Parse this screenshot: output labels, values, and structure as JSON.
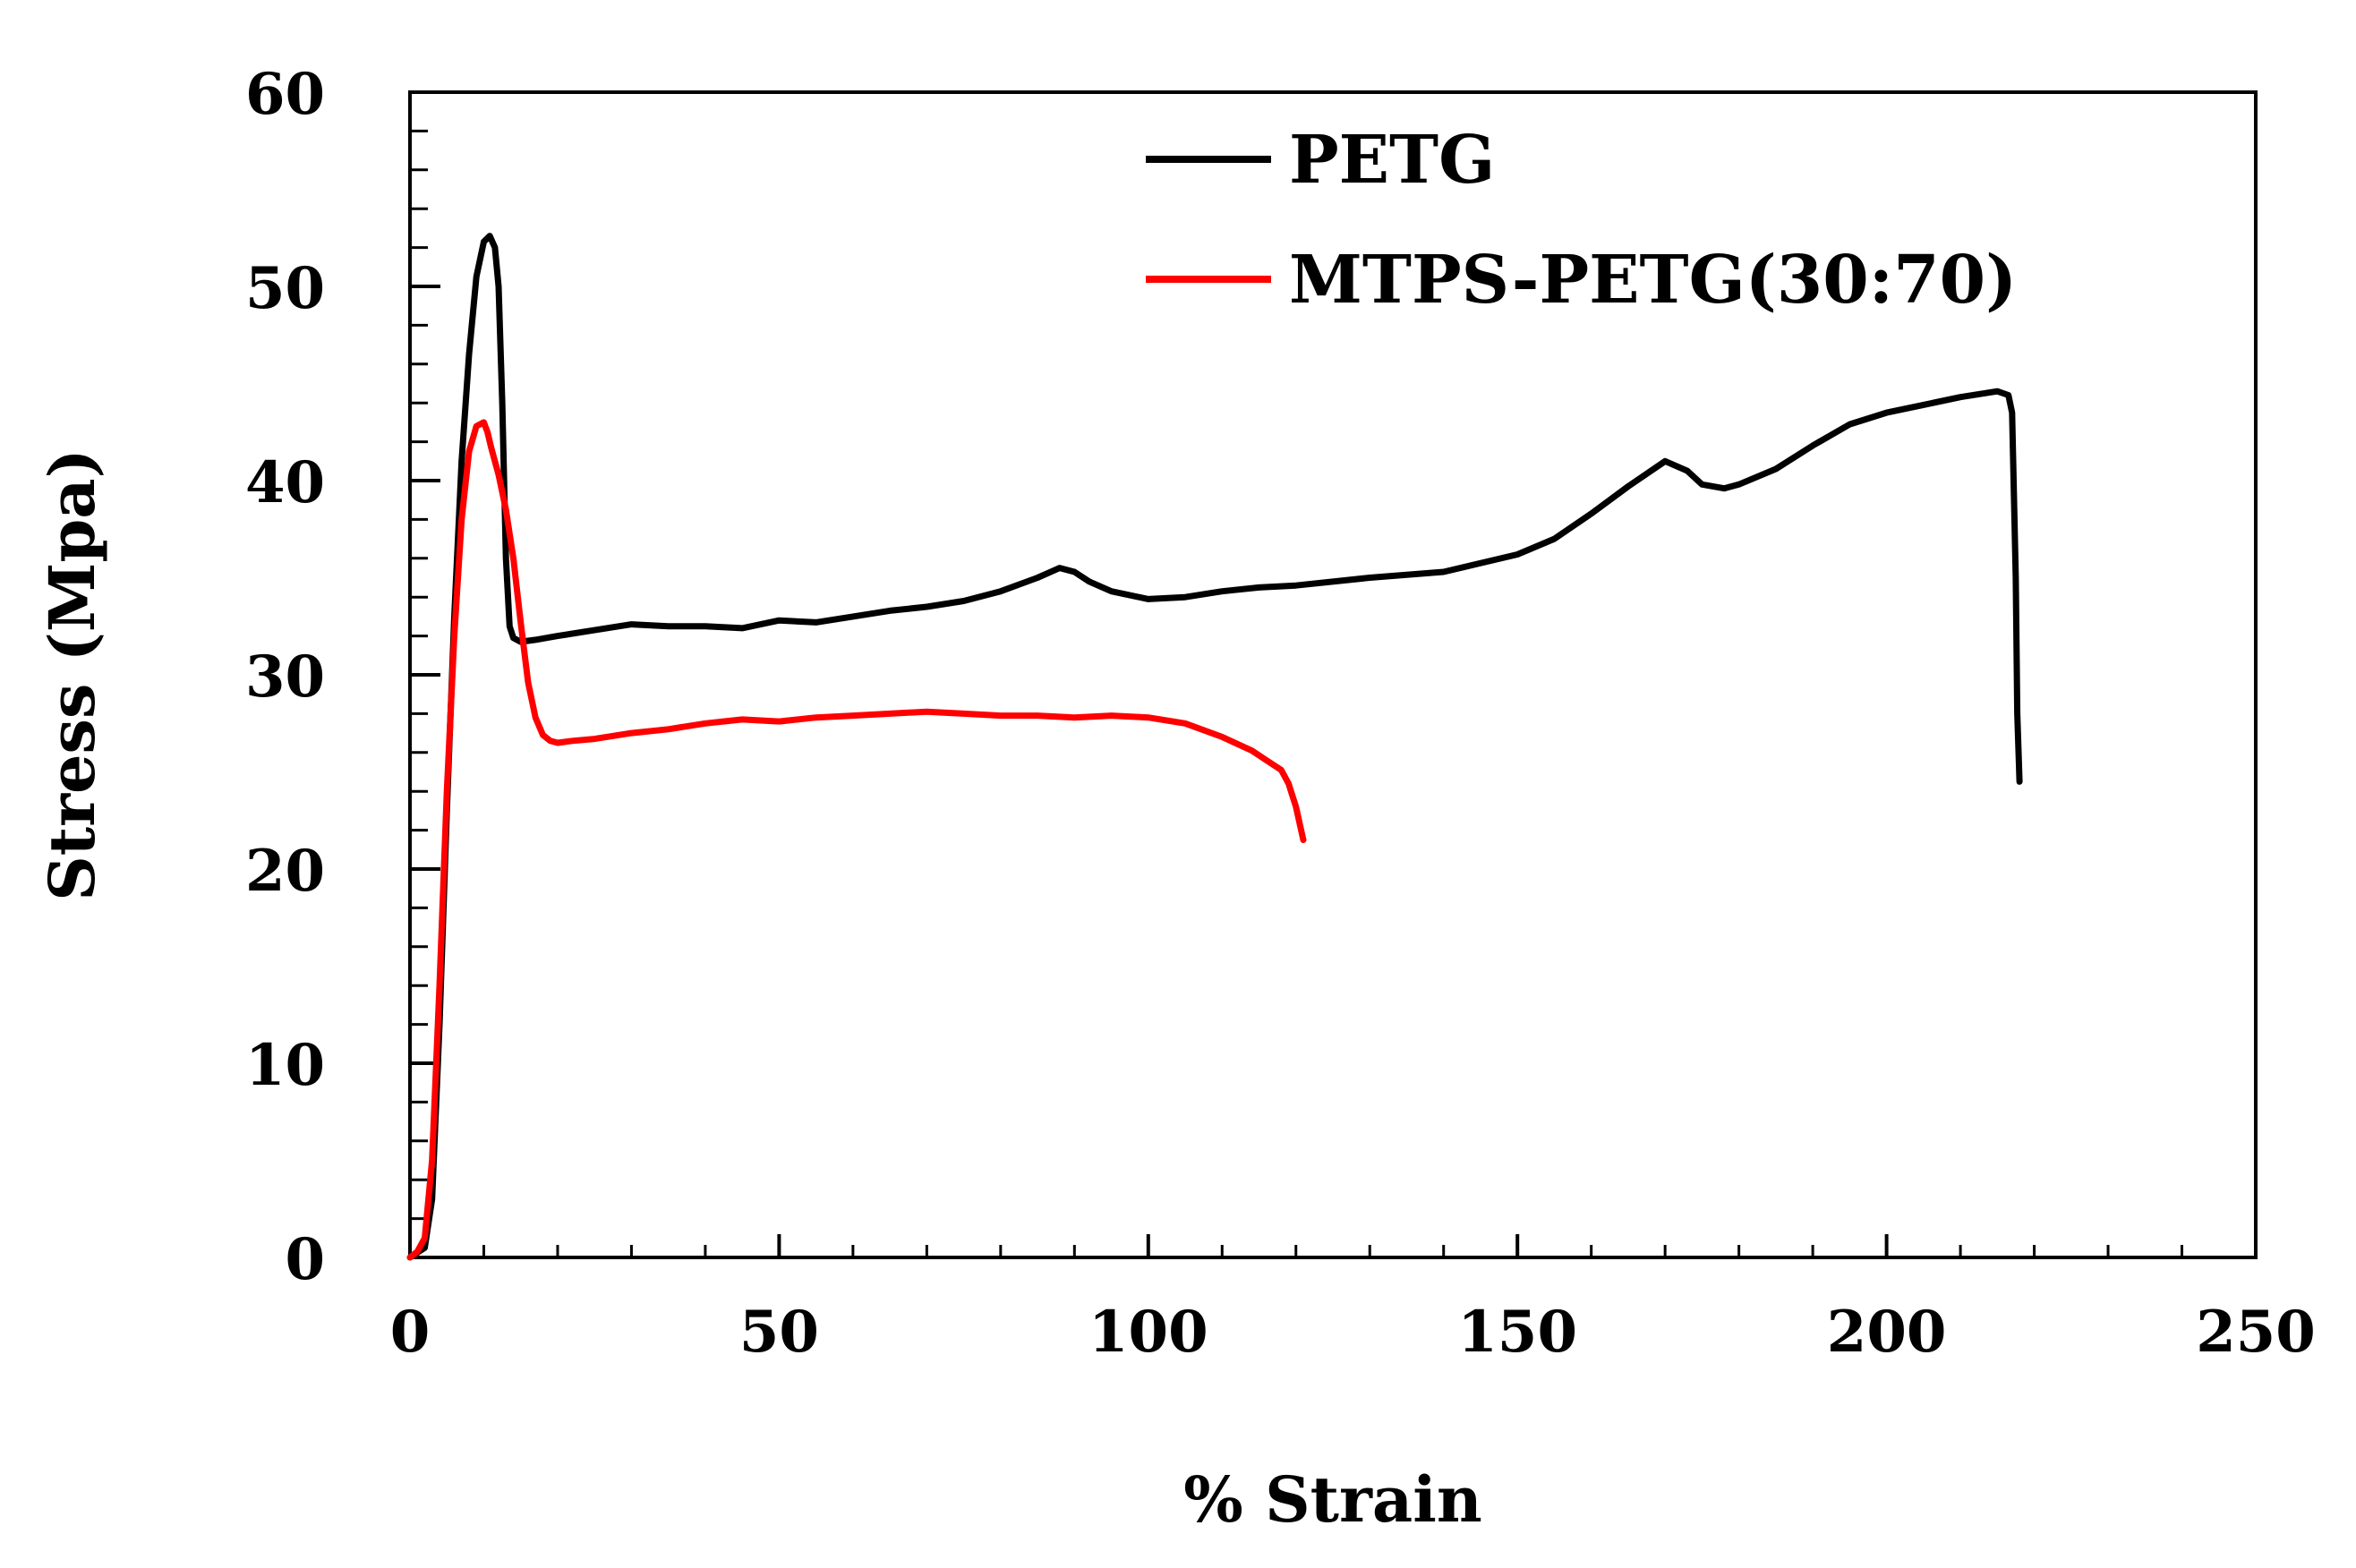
{
  "chart_data": {
    "type": "line",
    "title": "",
    "xlabel": "% Strain",
    "ylabel": "Stress (Mpa)",
    "xlim": [
      0,
      250
    ],
    "ylim": [
      0,
      60
    ],
    "x_ticks": [
      0,
      50,
      100,
      150,
      200,
      250
    ],
    "y_ticks": [
      0,
      10,
      20,
      30,
      40,
      50,
      60
    ],
    "x_tick_labels": [
      "0",
      "50",
      "100",
      "150",
      "200",
      "250"
    ],
    "y_tick_labels": [
      "0",
      "10",
      "20",
      "30",
      "40",
      "50",
      "60"
    ],
    "grid": false,
    "legend_position": "top-right",
    "series": [
      {
        "name": "PETG",
        "color": "#000000",
        "x": [
          0,
          2,
          3,
          4,
          5,
          6,
          7,
          8,
          9,
          10,
          10.8,
          11.5,
          12,
          12.5,
          13,
          13.5,
          14,
          15,
          17,
          20,
          25,
          30,
          35,
          40,
          45,
          50,
          55,
          60,
          65,
          70,
          75,
          80,
          85,
          88,
          90,
          92,
          95,
          100,
          105,
          110,
          115,
          120,
          130,
          140,
          150,
          155,
          160,
          165,
          170,
          173,
          175,
          178,
          180,
          185,
          190,
          195,
          200,
          205,
          210,
          215,
          216.5,
          217,
          217.5,
          217.7,
          218
        ],
        "y": [
          0,
          0.5,
          3,
          12,
          23,
          33,
          41,
          46.5,
          50.5,
          52.3,
          52.6,
          52,
          50,
          44,
          36,
          32.5,
          31.9,
          31.7,
          31.8,
          32,
          32.3,
          32.6,
          32.5,
          32.5,
          32.4,
          32.8,
          32.7,
          33,
          33.3,
          33.5,
          33.8,
          34.3,
          35,
          35.5,
          35.3,
          34.8,
          34.3,
          33.9,
          34,
          34.3,
          34.5,
          34.6,
          35,
          35.3,
          36.2,
          37,
          38.3,
          39.7,
          41,
          40.5,
          39.8,
          39.6,
          39.8,
          40.6,
          41.8,
          42.9,
          43.5,
          43.9,
          44.3,
          44.6,
          44.4,
          43.5,
          35,
          28,
          24.5
        ]
      },
      {
        "name": "MTPS-PETG(30:70)",
        "color": "#ff0000",
        "x": [
          0,
          1,
          2,
          3,
          4,
          5,
          6,
          7,
          8,
          9,
          10,
          10.5,
          11,
          12,
          13,
          14,
          15,
          16,
          17,
          18,
          19,
          20,
          22,
          25,
          30,
          35,
          40,
          45,
          50,
          55,
          60,
          65,
          70,
          75,
          80,
          85,
          90,
          95,
          100,
          105,
          110,
          114,
          116,
          118,
          119,
          120,
          121
        ],
        "y": [
          0,
          0.3,
          1,
          5,
          14,
          24,
          32,
          38,
          41.5,
          42.8,
          43,
          42.5,
          41.7,
          40.3,
          38.5,
          36,
          32.7,
          29.6,
          27.8,
          26.9,
          26.6,
          26.5,
          26.6,
          26.7,
          27,
          27.2,
          27.5,
          27.7,
          27.6,
          27.8,
          27.9,
          28,
          28.1,
          28,
          27.9,
          27.9,
          27.8,
          27.9,
          27.8,
          27.5,
          26.8,
          26.1,
          25.6,
          25.1,
          24.4,
          23.2,
          21.5
        ]
      }
    ]
  }
}
